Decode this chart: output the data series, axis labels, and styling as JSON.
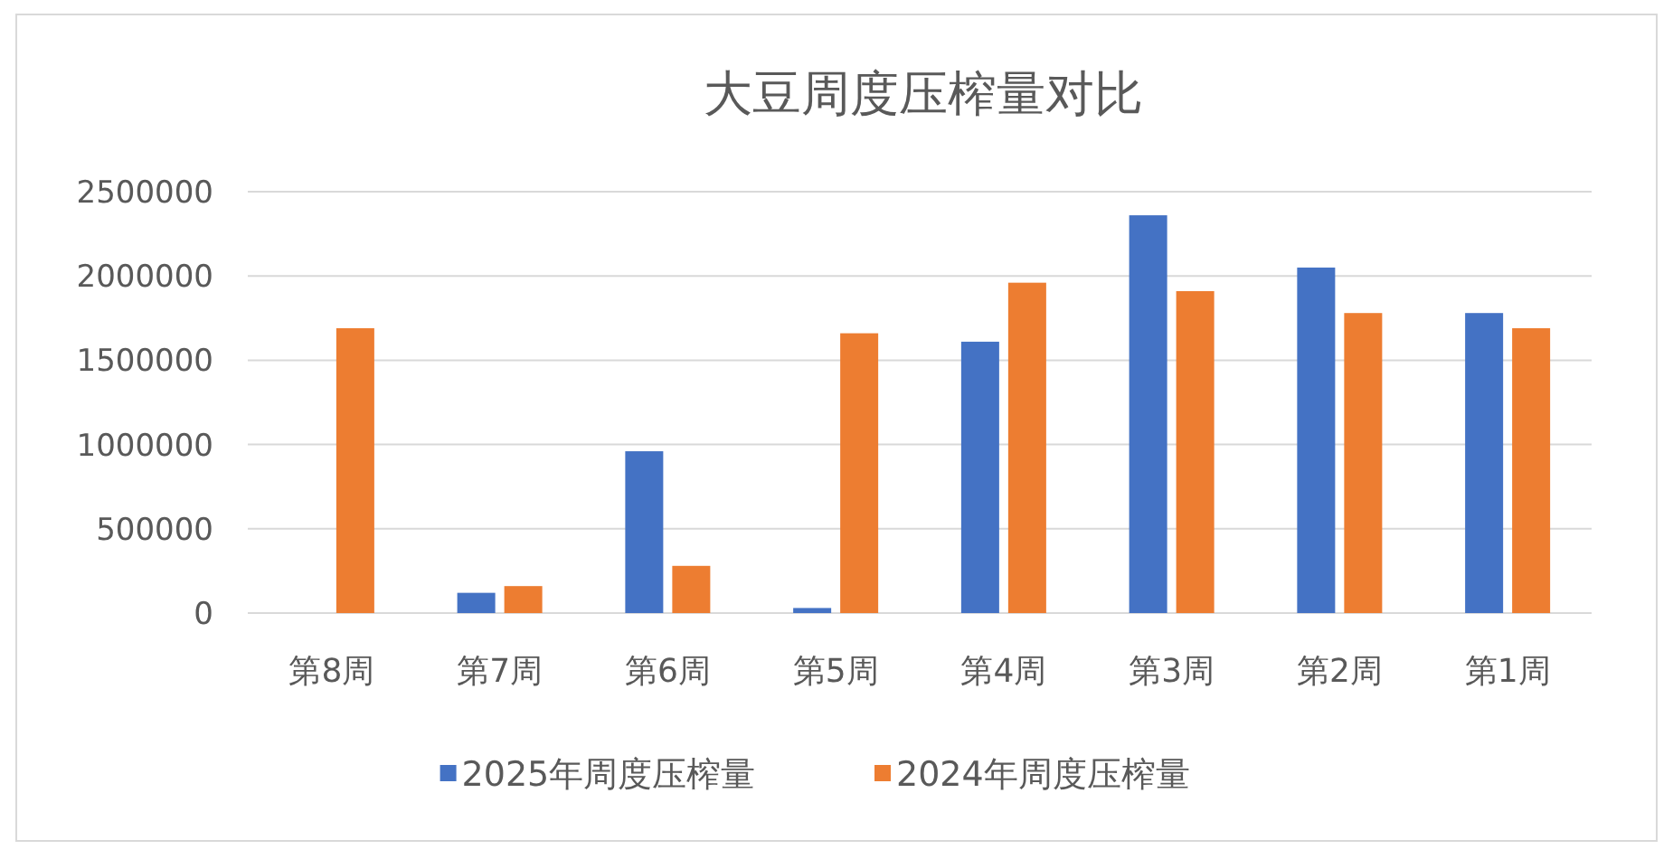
{
  "chart_data": {
    "type": "bar",
    "title": "大豆周度压榨量对比",
    "categories": [
      "第8周",
      "第7周",
      "第6周",
      "第5周",
      "第4周",
      "第3周",
      "第2周",
      "第1周"
    ],
    "series": [
      {
        "name": "2025年周度压榨量",
        "color": "#4472c4",
        "values": [
          null,
          120000,
          960000,
          30000,
          1610000,
          2360000,
          2050000,
          1780000
        ]
      },
      {
        "name": "2024年周度压榨量",
        "color": "#ed7d31",
        "values": [
          1690000,
          160000,
          280000,
          1660000,
          1960000,
          1910000,
          1780000,
          1690000
        ]
      }
    ],
    "ylim": [
      0,
      2500000
    ],
    "yticks": [
      0,
      500000,
      1000000,
      1500000,
      2000000,
      2500000
    ],
    "grid": "y",
    "legend": "bottom"
  }
}
